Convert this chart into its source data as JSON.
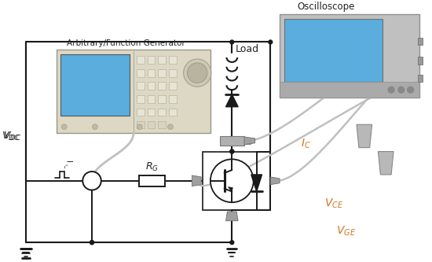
{
  "bg_color": "#ffffff",
  "blue_screen": "#5aaddc",
  "afg_body": "#ddd8c4",
  "afg_body_light": "#e8e4d4",
  "scope_body": "#c0c0c0",
  "scope_body_light": "#d0d0d0",
  "wire_color": "#c0c0c0",
  "probe_color": "#b0b0b0",
  "fg_color": "#1a1a1a",
  "orange": "#cc7722",
  "text_osc": "Oscilloscope",
  "text_afg": "Arbitrary/Function Generator",
  "text_load": "Load"
}
